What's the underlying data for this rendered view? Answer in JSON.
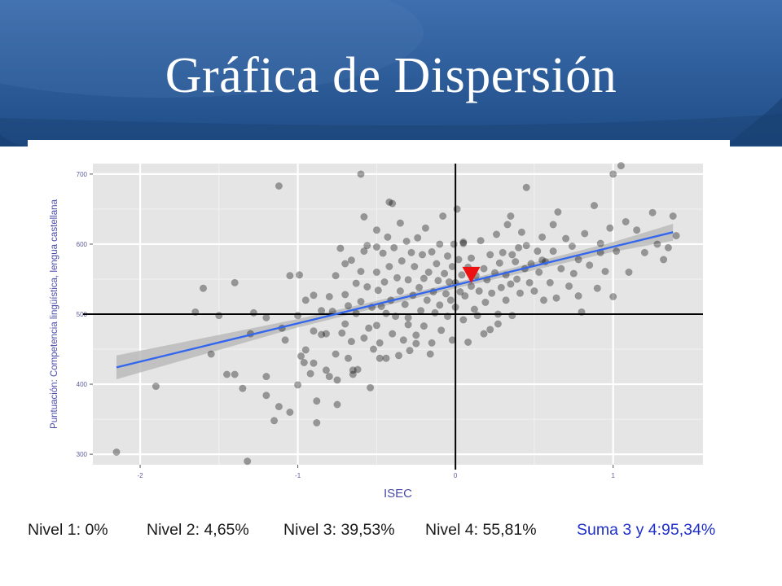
{
  "slide": {
    "title": "Gráfica de Dispersión",
    "colors": {
      "header_dark": "#1f4c86",
      "header_light": "#3f6fae",
      "accent_sum": "#2030c8"
    }
  },
  "footer": {
    "nivel1": "Nivel 1:  0%",
    "nivel2": "Nivel 2: 4,65%",
    "nivel3": "Nivel 3: 39,53%",
    "nivel4": "Nivel 4: 55,81%",
    "suma": "Suma 3 y 4:95,34%"
  },
  "chart_data": {
    "type": "scatter",
    "title": "",
    "xlabel": "ISEC",
    "ylabel": "Puntuación: Competencia lingüística, lengua castellana",
    "xlim": [
      -2.3,
      1.57
    ],
    "ylim": [
      285,
      715
    ],
    "xticks": [
      -2,
      -1,
      0,
      1
    ],
    "xtick_labels": [
      "-2",
      "-1",
      "0",
      "1"
    ],
    "yticks": [
      300,
      400,
      500,
      600,
      700
    ],
    "ytick_labels": [
      "300",
      "400",
      "500",
      "600",
      "700"
    ],
    "grid": true,
    "reference_lines": {
      "x": 0,
      "y": 500
    },
    "regression": {
      "x_start": -2.15,
      "x_end": 1.38,
      "y_start": 424,
      "y_end": 617
    },
    "highlight_point": {
      "x": 0.1,
      "y": 556,
      "marker": "triangle-down",
      "color": "#ee1111"
    },
    "points": [
      [
        -2.15,
        303
      ],
      [
        -1.9,
        397
      ],
      [
        -1.65,
        503
      ],
      [
        -1.6,
        537
      ],
      [
        -1.55,
        443
      ],
      [
        -1.5,
        498
      ],
      [
        -1.45,
        414
      ],
      [
        -1.4,
        545
      ],
      [
        -1.4,
        414
      ],
      [
        -1.35,
        394
      ],
      [
        -1.32,
        290
      ],
      [
        -1.3,
        472
      ],
      [
        -1.2,
        495
      ],
      [
        -1.2,
        411
      ],
      [
        -1.2,
        384
      ],
      [
        -1.15,
        348
      ],
      [
        -1.12,
        368
      ],
      [
        -1.12,
        683
      ],
      [
        -1.1,
        480
      ],
      [
        -1.08,
        463
      ],
      [
        -1.05,
        555
      ],
      [
        -1.05,
        360
      ],
      [
        -1.0,
        498
      ],
      [
        -1.0,
        399
      ],
      [
        -0.99,
        556
      ],
      [
        -0.98,
        440
      ],
      [
        -0.96,
        431
      ],
      [
        -0.95,
        520
      ],
      [
        -0.95,
        449
      ],
      [
        -0.92,
        415
      ],
      [
        -0.9,
        527
      ],
      [
        -0.9,
        430
      ],
      [
        -0.88,
        376
      ],
      [
        -0.88,
        345
      ],
      [
        -0.85,
        471
      ],
      [
        -0.82,
        420
      ],
      [
        -0.82,
        472
      ],
      [
        -0.8,
        525
      ],
      [
        -0.8,
        411
      ],
      [
        -0.78,
        504
      ],
      [
        -0.76,
        555
      ],
      [
        -0.76,
        443
      ],
      [
        -0.75,
        406
      ],
      [
        -0.75,
        371
      ],
      [
        -0.73,
        594
      ],
      [
        -0.72,
        473
      ],
      [
        -0.7,
        528
      ],
      [
        -0.7,
        486
      ],
      [
        -0.68,
        512
      ],
      [
        -0.68,
        437
      ],
      [
        -0.66,
        577
      ],
      [
        -0.66,
        461
      ],
      [
        -0.65,
        414
      ],
      [
        -0.63,
        544
      ],
      [
        -0.63,
        501
      ],
      [
        -0.62,
        421
      ],
      [
        -0.6,
        518
      ],
      [
        -0.6,
        561
      ],
      [
        -0.6,
        700
      ],
      [
        -0.58,
        466
      ],
      [
        -0.58,
        639
      ],
      [
        -0.56,
        539
      ],
      [
        -0.56,
        598
      ],
      [
        -0.55,
        480
      ],
      [
        -0.54,
        395
      ],
      [
        -0.53,
        510
      ],
      [
        -0.52,
        450
      ],
      [
        -0.5,
        560
      ],
      [
        -0.5,
        620
      ],
      [
        -0.5,
        484
      ],
      [
        -0.49,
        534
      ],
      [
        -0.48,
        459
      ],
      [
        -0.47,
        511
      ],
      [
        -0.46,
        587
      ],
      [
        -0.45,
        546
      ],
      [
        -0.44,
        501
      ],
      [
        -0.44,
        437
      ],
      [
        -0.43,
        610
      ],
      [
        -0.42,
        568
      ],
      [
        -0.41,
        520
      ],
      [
        -0.4,
        658
      ],
      [
        -0.4,
        472
      ],
      [
        -0.39,
        595
      ],
      [
        -0.38,
        497
      ],
      [
        -0.37,
        552
      ],
      [
        -0.36,
        441
      ],
      [
        -0.35,
        630
      ],
      [
        -0.35,
        533
      ],
      [
        -0.34,
        576
      ],
      [
        -0.33,
        463
      ],
      [
        -0.32,
        514
      ],
      [
        -0.31,
        604
      ],
      [
        -0.3,
        549
      ],
      [
        -0.3,
        495
      ],
      [
        -0.29,
        448
      ],
      [
        -0.28,
        588
      ],
      [
        -0.27,
        527
      ],
      [
        -0.26,
        568
      ],
      [
        -0.25,
        470
      ],
      [
        -0.24,
        609
      ],
      [
        -0.23,
        538
      ],
      [
        -0.22,
        505
      ],
      [
        -0.21,
        585
      ],
      [
        -0.2,
        551
      ],
      [
        -0.2,
        483
      ],
      [
        -0.19,
        623
      ],
      [
        -0.18,
        520
      ],
      [
        -0.17,
        560
      ],
      [
        -0.16,
        443
      ],
      [
        -0.15,
        589
      ],
      [
        -0.14,
        532
      ],
      [
        -0.13,
        502
      ],
      [
        -0.12,
        572
      ],
      [
        -0.11,
        548
      ],
      [
        -0.1,
        600
      ],
      [
        -0.1,
        513
      ],
      [
        -0.09,
        477
      ],
      [
        -0.08,
        640
      ],
      [
        -0.07,
        558
      ],
      [
        -0.06,
        529
      ],
      [
        -0.05,
        583
      ],
      [
        -0.05,
        497
      ],
      [
        -0.04,
        546
      ],
      [
        -0.03,
        520
      ],
      [
        -0.02,
        568
      ],
      [
        -0.02,
        463
      ],
      [
        -0.01,
        600
      ],
      [
        0.0,
        545
      ],
      [
        0.0,
        510
      ],
      [
        0.01,
        650
      ],
      [
        0.02,
        578
      ],
      [
        0.03,
        532
      ],
      [
        0.04,
        556
      ],
      [
        0.05,
        492
      ],
      [
        0.05,
        603
      ],
      [
        0.06,
        526
      ],
      [
        0.08,
        567
      ],
      [
        0.08,
        460
      ],
      [
        0.1,
        540
      ],
      [
        0.1,
        580
      ],
      [
        0.12,
        507
      ],
      [
        0.13,
        555
      ],
      [
        0.14,
        498
      ],
      [
        0.15,
        533
      ],
      [
        0.16,
        605
      ],
      [
        0.18,
        565
      ],
      [
        0.19,
        517
      ],
      [
        0.2,
        549
      ],
      [
        0.22,
        585
      ],
      [
        0.22,
        478
      ],
      [
        0.23,
        530
      ],
      [
        0.25,
        559
      ],
      [
        0.26,
        614
      ],
      [
        0.27,
        500
      ],
      [
        0.28,
        573
      ],
      [
        0.29,
        538
      ],
      [
        0.3,
        588
      ],
      [
        0.32,
        520
      ],
      [
        0.32,
        556
      ],
      [
        0.33,
        628
      ],
      [
        0.35,
        543
      ],
      [
        0.36,
        498
      ],
      [
        0.38,
        575
      ],
      [
        0.39,
        550
      ],
      [
        0.4,
        595
      ],
      [
        0.41,
        530
      ],
      [
        0.42,
        617
      ],
      [
        0.44,
        565
      ],
      [
        0.45,
        598
      ],
      [
        0.45,
        681
      ],
      [
        0.47,
        545
      ],
      [
        0.48,
        572
      ],
      [
        0.5,
        533
      ],
      [
        0.52,
        590
      ],
      [
        0.53,
        560
      ],
      [
        0.55,
        610
      ],
      [
        0.56,
        520
      ],
      [
        0.57,
        575
      ],
      [
        0.6,
        545
      ],
      [
        0.62,
        590
      ],
      [
        0.64,
        523
      ],
      [
        0.65,
        646
      ],
      [
        0.67,
        565
      ],
      [
        0.7,
        608
      ],
      [
        0.72,
        540
      ],
      [
        0.74,
        597
      ],
      [
        0.75,
        558
      ],
      [
        0.78,
        578
      ],
      [
        0.8,
        503
      ],
      [
        0.82,
        615
      ],
      [
        0.85,
        570
      ],
      [
        0.88,
        655
      ],
      [
        0.9,
        537
      ],
      [
        0.92,
        601
      ],
      [
        0.95,
        561
      ],
      [
        0.98,
        623
      ],
      [
        1.0,
        700
      ],
      [
        1.0,
        525
      ],
      [
        1.02,
        590
      ],
      [
        1.05,
        712
      ],
      [
        1.08,
        632
      ],
      [
        1.1,
        560
      ],
      [
        1.15,
        620
      ],
      [
        1.2,
        588
      ],
      [
        1.25,
        645
      ],
      [
        1.28,
        600
      ],
      [
        1.32,
        578
      ],
      [
        1.35,
        595
      ],
      [
        1.38,
        640
      ],
      [
        1.4,
        612
      ],
      [
        -0.42,
        660
      ],
      [
        -0.65,
        420
      ],
      [
        -0.3,
        485
      ],
      [
        0.62,
        628
      ],
      [
        0.35,
        640
      ],
      [
        -0.15,
        459
      ],
      [
        0.27,
        486
      ],
      [
        -0.58,
        590
      ],
      [
        0.78,
        526
      ],
      [
        -0.85,
        505
      ],
      [
        -0.48,
        437
      ],
      [
        0.18,
        472
      ],
      [
        -0.7,
        572
      ],
      [
        0.55,
        577
      ],
      [
        -0.25,
        458
      ],
      [
        -1.28,
        502
      ],
      [
        -0.5,
        596
      ],
      [
        0.05,
        601
      ],
      [
        0.36,
        585
      ],
      [
        -0.9,
        476
      ],
      [
        0.92,
        588
      ]
    ]
  }
}
